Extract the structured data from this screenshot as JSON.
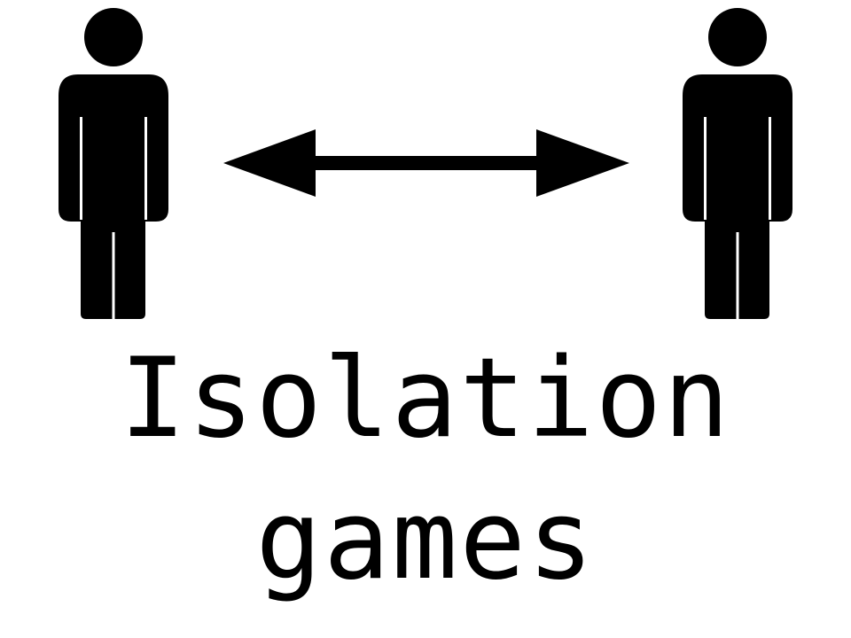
{
  "title": {
    "line1": "Isolation",
    "line2": "games"
  },
  "icons": {
    "left": "person-icon",
    "middle": "double-arrow-icon",
    "right": "person-icon"
  },
  "colors": {
    "foreground": "#000000",
    "background": "#ffffff"
  }
}
